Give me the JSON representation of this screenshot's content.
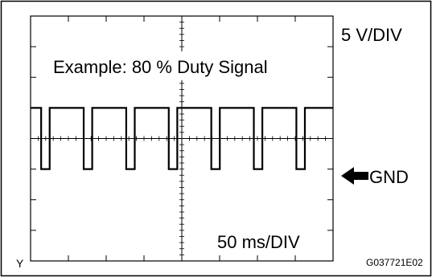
{
  "scope": {
    "volt_label": "5 V/DIV",
    "time_label": "50 ms/DIV",
    "example_label": "Example: 80 % Duty Signal",
    "gnd_label": "GND",
    "figure_id": "G037721E02",
    "corner_mark": "Y"
  },
  "waveform": {
    "duty_percent": 80,
    "high_level_div": 1,
    "low_level_div": -1,
    "period_div": 1.125,
    "first_drop_div": 0.28
  },
  "grid": {
    "h_div": 8,
    "v_div": 8,
    "minor_per_div": 5
  },
  "colors": {
    "line": "#000000",
    "background": "#ffffff"
  }
}
